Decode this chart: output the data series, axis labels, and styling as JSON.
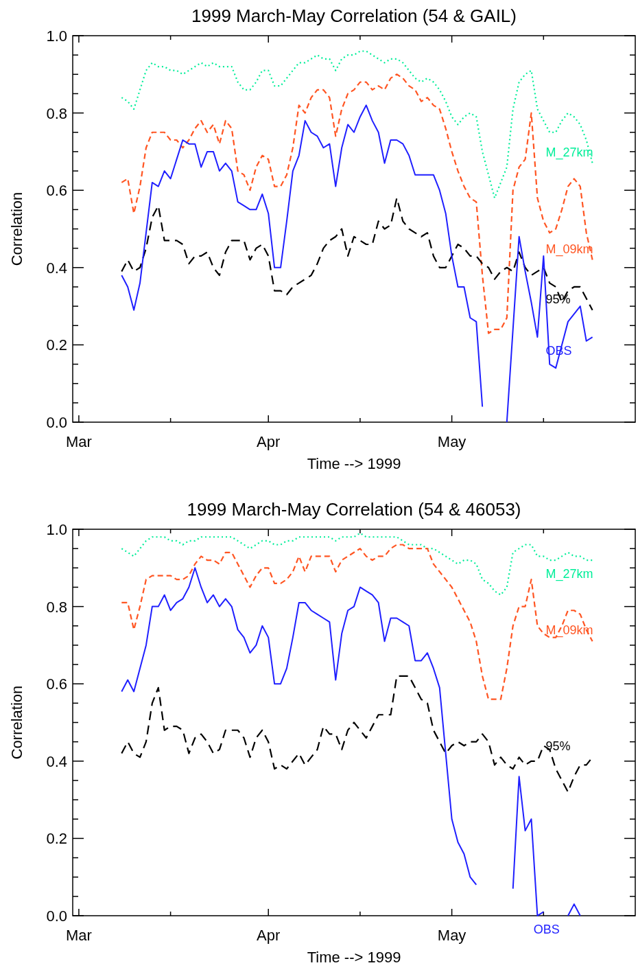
{
  "chart_data": [
    {
      "type": "line",
      "title": "1999 March-May Correlation (54 & GAIL)",
      "xlabel": "Time --> 1999",
      "ylabel": "Correlation",
      "x": [
        "1999-03-08",
        "1999-03-09",
        "1999-03-10",
        "1999-03-11",
        "1999-03-12",
        "1999-03-13",
        "1999-03-14",
        "1999-03-15",
        "1999-03-16",
        "1999-03-17",
        "1999-03-18",
        "1999-03-19",
        "1999-03-20",
        "1999-03-21",
        "1999-03-22",
        "1999-03-23",
        "1999-03-24",
        "1999-03-25",
        "1999-03-26",
        "1999-03-27",
        "1999-03-28",
        "1999-03-29",
        "1999-03-30",
        "1999-03-31",
        "1999-04-01",
        "1999-04-02",
        "1999-04-03",
        "1999-04-04",
        "1999-04-05",
        "1999-04-06",
        "1999-04-07",
        "1999-04-08",
        "1999-04-09",
        "1999-04-10",
        "1999-04-11",
        "1999-04-12",
        "1999-04-13",
        "1999-04-14",
        "1999-04-15",
        "1999-04-16",
        "1999-04-17",
        "1999-04-18",
        "1999-04-19",
        "1999-04-20",
        "1999-04-21",
        "1999-04-22",
        "1999-04-23",
        "1999-04-24",
        "1999-04-25",
        "1999-04-26",
        "1999-04-27",
        "1999-04-28",
        "1999-04-29",
        "1999-04-30",
        "1999-05-01",
        "1999-05-02",
        "1999-05-03",
        "1999-05-04",
        "1999-05-05",
        "1999-05-06",
        "1999-05-07",
        "1999-05-08",
        "1999-05-09",
        "1999-05-10",
        "1999-05-11",
        "1999-05-12",
        "1999-05-13",
        "1999-05-14",
        "1999-05-15",
        "1999-05-16",
        "1999-05-17",
        "1999-05-18",
        "1999-05-19",
        "1999-05-20",
        "1999-05-21",
        "1999-05-22",
        "1999-05-23",
        "1999-05-24"
      ],
      "series": [
        {
          "name": "M_27km",
          "color": "#00ee99",
          "line_style": "dotted",
          "values": [
            0.84,
            0.83,
            0.81,
            0.86,
            0.91,
            0.93,
            0.92,
            0.92,
            0.91,
            0.91,
            0.9,
            0.91,
            0.92,
            0.93,
            0.92,
            0.93,
            0.92,
            0.92,
            0.92,
            0.88,
            0.86,
            0.86,
            0.88,
            0.91,
            0.91,
            0.87,
            0.87,
            0.89,
            0.91,
            0.93,
            0.93,
            0.94,
            0.95,
            0.94,
            0.94,
            0.91,
            0.94,
            0.95,
            0.95,
            0.96,
            0.96,
            0.95,
            0.94,
            0.93,
            0.94,
            0.94,
            0.93,
            0.91,
            0.89,
            0.88,
            0.89,
            0.88,
            0.86,
            0.83,
            0.79,
            0.77,
            0.79,
            0.8,
            0.79,
            0.7,
            0.64,
            0.58,
            0.62,
            0.66,
            0.81,
            0.88,
            0.9,
            0.91,
            0.81,
            0.78,
            0.75,
            0.75,
            0.78,
            0.8,
            0.79,
            0.77,
            0.73,
            0.67
          ]
        },
        {
          "name": "M_09km",
          "color": "#ff5522",
          "line_style": "dashed",
          "values": [
            0.62,
            0.63,
            0.54,
            0.61,
            0.71,
            0.75,
            0.75,
            0.75,
            0.73,
            0.73,
            0.71,
            0.73,
            0.76,
            0.78,
            0.75,
            0.77,
            0.72,
            0.78,
            0.76,
            0.65,
            0.64,
            0.6,
            0.66,
            0.69,
            0.68,
            0.61,
            0.61,
            0.64,
            0.71,
            0.82,
            0.8,
            0.84,
            0.86,
            0.86,
            0.84,
            0.74,
            0.81,
            0.85,
            0.86,
            0.88,
            0.88,
            0.86,
            0.87,
            0.86,
            0.89,
            0.9,
            0.89,
            0.87,
            0.86,
            0.83,
            0.84,
            0.82,
            0.81,
            0.76,
            0.7,
            0.65,
            0.61,
            0.58,
            0.57,
            0.38,
            0.23,
            0.24,
            0.24,
            0.27,
            0.6,
            0.66,
            0.68,
            0.8,
            0.58,
            0.52,
            0.49,
            0.5,
            0.55,
            0.61,
            0.63,
            0.61,
            0.49,
            0.42
          ]
        },
        {
          "name": "95%",
          "color": "#000000",
          "line_style": "longdash",
          "values": [
            0.39,
            0.42,
            0.39,
            0.4,
            0.45,
            0.53,
            0.56,
            0.47,
            0.47,
            0.47,
            0.46,
            0.41,
            0.43,
            0.43,
            0.44,
            0.4,
            0.38,
            0.44,
            0.47,
            0.47,
            0.47,
            0.42,
            0.45,
            0.46,
            0.43,
            0.34,
            0.34,
            0.33,
            0.35,
            0.36,
            0.37,
            0.38,
            0.41,
            0.45,
            0.47,
            0.48,
            0.5,
            0.43,
            0.48,
            0.47,
            0.46,
            0.46,
            0.52,
            0.5,
            0.51,
            0.58,
            0.52,
            0.5,
            0.49,
            0.48,
            0.49,
            0.43,
            0.4,
            0.4,
            0.43,
            0.46,
            0.45,
            0.43,
            0.43,
            0.41,
            0.4,
            0.37,
            0.39,
            0.4,
            0.39,
            0.44,
            0.4,
            0.38,
            0.39,
            0.4,
            0.36,
            0.35,
            0.31,
            0.34,
            0.35,
            0.35,
            0.32,
            0.29
          ]
        },
        {
          "name": "OBS",
          "color": "#1f1fff",
          "line_style": "solid",
          "values": [
            0.38,
            0.35,
            0.29,
            0.36,
            0.49,
            0.62,
            0.61,
            0.65,
            0.63,
            0.68,
            0.73,
            0.72,
            0.72,
            0.66,
            0.7,
            0.7,
            0.65,
            0.67,
            0.65,
            0.57,
            0.56,
            0.55,
            0.55,
            0.59,
            0.54,
            0.4,
            0.4,
            0.52,
            0.65,
            0.69,
            0.78,
            0.75,
            0.74,
            0.71,
            0.72,
            0.61,
            0.71,
            0.77,
            0.75,
            0.79,
            0.82,
            0.78,
            0.75,
            0.67,
            0.73,
            0.73,
            0.72,
            0.69,
            0.64,
            0.64,
            0.64,
            0.64,
            0.6,
            0.54,
            0.43,
            0.35,
            0.35,
            0.27,
            0.26,
            0.04,
            null,
            null,
            null,
            0.0,
            0.24,
            0.48,
            0.39,
            0.31,
            0.22,
            0.43,
            0.15,
            0.14,
            0.2,
            0.26,
            0.28,
            0.3,
            0.21,
            0.22
          ]
        }
      ],
      "xlim": [
        "1999-02-28",
        "1999-05-31"
      ],
      "xticks": [
        {
          "value": "1999-03-01",
          "label": "Mar"
        },
        {
          "value": "1999-03-16",
          "label": null
        },
        {
          "value": "1999-04-01",
          "label": "Apr"
        },
        {
          "value": "1999-04-16",
          "label": null
        },
        {
          "value": "1999-05-01",
          "label": "May"
        },
        {
          "value": "1999-05-16",
          "label": null
        }
      ],
      "ylim": [
        0,
        1
      ],
      "yticks": [
        {
          "value": 0,
          "label": "0.0"
        },
        {
          "value": 0.05,
          "label": null
        },
        {
          "value": 0.1,
          "label": null
        },
        {
          "value": 0.15,
          "label": null
        },
        {
          "value": 0.2,
          "label": "0.2"
        },
        {
          "value": 0.25,
          "label": null
        },
        {
          "value": 0.3,
          "label": null
        },
        {
          "value": 0.35,
          "label": null
        },
        {
          "value": 0.4,
          "label": "0.4"
        },
        {
          "value": 0.45,
          "label": null
        },
        {
          "value": 0.5,
          "label": null
        },
        {
          "value": 0.55,
          "label": null
        },
        {
          "value": 0.6,
          "label": "0.6"
        },
        {
          "value": 0.65,
          "label": null
        },
        {
          "value": 0.7,
          "label": null
        },
        {
          "value": 0.75,
          "label": null
        },
        {
          "value": 0.8,
          "label": "0.8"
        },
        {
          "value": 0.85,
          "label": null
        },
        {
          "value": 0.9,
          "label": null
        },
        {
          "value": 0.95,
          "label": null
        },
        {
          "value": 1,
          "label": "1.0"
        }
      ]
    },
    {
      "type": "line",
      "title": "1999 March-May Correlation (54 & 46053)",
      "xlabel": "Time --> 1999",
      "ylabel": "Correlation",
      "x": [
        "1999-03-08",
        "1999-03-09",
        "1999-03-10",
        "1999-03-11",
        "1999-03-12",
        "1999-03-13",
        "1999-03-14",
        "1999-03-15",
        "1999-03-16",
        "1999-03-17",
        "1999-03-18",
        "1999-03-19",
        "1999-03-20",
        "1999-03-21",
        "1999-03-22",
        "1999-03-23",
        "1999-03-24",
        "1999-03-25",
        "1999-03-26",
        "1999-03-27",
        "1999-03-28",
        "1999-03-29",
        "1999-03-30",
        "1999-03-31",
        "1999-04-01",
        "1999-04-02",
        "1999-04-03",
        "1999-04-04",
        "1999-04-05",
        "1999-04-06",
        "1999-04-07",
        "1999-04-08",
        "1999-04-09",
        "1999-04-10",
        "1999-04-11",
        "1999-04-12",
        "1999-04-13",
        "1999-04-14",
        "1999-04-15",
        "1999-04-16",
        "1999-04-17",
        "1999-04-18",
        "1999-04-19",
        "1999-04-20",
        "1999-04-21",
        "1999-04-22",
        "1999-04-23",
        "1999-04-24",
        "1999-04-25",
        "1999-04-26",
        "1999-04-27",
        "1999-04-28",
        "1999-04-29",
        "1999-04-30",
        "1999-05-01",
        "1999-05-02",
        "1999-05-03",
        "1999-05-04",
        "1999-05-05",
        "1999-05-06",
        "1999-05-07",
        "1999-05-08",
        "1999-05-09",
        "1999-05-10",
        "1999-05-11",
        "1999-05-12",
        "1999-05-13",
        "1999-05-14",
        "1999-05-15",
        "1999-05-16",
        "1999-05-17",
        "1999-05-18",
        "1999-05-19",
        "1999-05-20",
        "1999-05-21",
        "1999-05-22",
        "1999-05-23",
        "1999-05-24"
      ],
      "series": [
        {
          "name": "M_27km",
          "color": "#00ee99",
          "line_style": "dotted",
          "values": [
            0.95,
            0.94,
            0.93,
            0.95,
            0.97,
            0.98,
            0.98,
            0.98,
            0.97,
            0.97,
            0.96,
            0.97,
            0.97,
            0.98,
            0.98,
            0.98,
            0.98,
            0.98,
            0.98,
            0.97,
            0.96,
            0.95,
            0.96,
            0.97,
            0.97,
            0.96,
            0.96,
            0.97,
            0.97,
            0.98,
            0.98,
            0.98,
            0.98,
            0.98,
            0.98,
            0.97,
            0.98,
            0.98,
            0.98,
            0.99,
            0.98,
            0.98,
            0.98,
            0.98,
            0.98,
            0.98,
            0.97,
            0.96,
            0.96,
            0.96,
            0.95,
            0.95,
            0.94,
            0.93,
            0.92,
            0.91,
            0.92,
            0.92,
            0.91,
            0.87,
            0.86,
            0.84,
            0.83,
            0.85,
            0.94,
            0.95,
            0.96,
            0.96,
            0.93,
            0.93,
            0.92,
            0.92,
            0.93,
            0.94,
            0.93,
            0.93,
            0.92,
            0.92
          ]
        },
        {
          "name": "M_09km",
          "color": "#ff5522",
          "line_style": "dashed",
          "values": [
            0.81,
            0.81,
            0.74,
            0.8,
            0.87,
            0.88,
            0.88,
            0.88,
            0.88,
            0.87,
            0.87,
            0.88,
            0.91,
            0.93,
            0.92,
            0.92,
            0.91,
            0.94,
            0.94,
            0.91,
            0.88,
            0.85,
            0.88,
            0.9,
            0.9,
            0.86,
            0.86,
            0.87,
            0.89,
            0.93,
            0.89,
            0.93,
            0.93,
            0.93,
            0.93,
            0.89,
            0.92,
            0.93,
            0.94,
            0.95,
            0.93,
            0.92,
            0.93,
            0.93,
            0.95,
            0.96,
            0.96,
            0.95,
            0.95,
            0.95,
            0.95,
            0.91,
            0.89,
            0.87,
            0.85,
            0.82,
            0.79,
            0.76,
            0.71,
            0.62,
            0.56,
            0.56,
            0.56,
            0.64,
            0.75,
            0.8,
            0.8,
            0.87,
            0.75,
            0.73,
            0.72,
            0.72,
            0.75,
            0.79,
            0.79,
            0.78,
            0.74,
            0.71
          ]
        },
        {
          "name": "95%",
          "color": "#000000",
          "line_style": "longdash",
          "values": [
            0.42,
            0.45,
            0.42,
            0.41,
            0.45,
            0.55,
            0.59,
            0.48,
            0.49,
            0.49,
            0.48,
            0.42,
            0.46,
            0.47,
            0.45,
            0.42,
            0.43,
            0.48,
            0.48,
            0.48,
            0.46,
            0.41,
            0.46,
            0.48,
            0.45,
            0.38,
            0.39,
            0.38,
            0.4,
            0.42,
            0.39,
            0.41,
            0.43,
            0.49,
            0.47,
            0.47,
            0.43,
            0.48,
            0.5,
            0.48,
            0.46,
            0.49,
            0.52,
            0.52,
            0.52,
            0.62,
            0.62,
            0.62,
            0.59,
            0.56,
            0.55,
            0.48,
            0.45,
            0.42,
            0.44,
            0.45,
            0.44,
            0.45,
            0.45,
            0.47,
            0.45,
            0.39,
            0.41,
            0.39,
            0.38,
            0.41,
            0.39,
            0.4,
            0.4,
            0.44,
            0.43,
            0.38,
            0.35,
            0.32,
            0.36,
            0.39,
            0.39,
            0.41
          ]
        },
        {
          "name": "OBS",
          "color": "#1f1fff",
          "line_style": "solid",
          "values": [
            0.58,
            0.61,
            0.58,
            0.64,
            0.7,
            0.8,
            0.8,
            0.83,
            0.79,
            0.81,
            0.82,
            0.85,
            0.9,
            0.85,
            0.81,
            0.83,
            0.8,
            0.82,
            0.8,
            0.74,
            0.72,
            0.68,
            0.7,
            0.75,
            0.72,
            0.6,
            0.6,
            0.64,
            0.72,
            0.81,
            0.81,
            0.79,
            0.78,
            0.77,
            0.76,
            0.61,
            0.73,
            0.79,
            0.8,
            0.85,
            0.84,
            0.83,
            0.81,
            0.71,
            0.77,
            0.77,
            0.76,
            0.75,
            0.66,
            0.66,
            0.68,
            0.64,
            0.59,
            0.42,
            0.25,
            0.19,
            0.16,
            0.1,
            0.08,
            null,
            null,
            null,
            null,
            null,
            0.07,
            0.36,
            0.22,
            0.25,
            0.0,
            0.01,
            null,
            null,
            null,
            0.0,
            0.03,
            0.0,
            null,
            null
          ]
        }
      ],
      "xlim": [
        "1999-02-28",
        "1999-05-31"
      ],
      "xticks": [
        {
          "value": "1999-03-01",
          "label": "Mar"
        },
        {
          "value": "1999-03-16",
          "label": null
        },
        {
          "value": "1999-04-01",
          "label": "Apr"
        },
        {
          "value": "1999-04-16",
          "label": null
        },
        {
          "value": "1999-05-01",
          "label": "May"
        },
        {
          "value": "1999-05-16",
          "label": null
        }
      ],
      "ylim": [
        0,
        1
      ],
      "yticks": [
        {
          "value": 0,
          "label": "0.0"
        },
        {
          "value": 0.05,
          "label": null
        },
        {
          "value": 0.1,
          "label": null
        },
        {
          "value": 0.15,
          "label": null
        },
        {
          "value": 0.2,
          "label": "0.2"
        },
        {
          "value": 0.25,
          "label": null
        },
        {
          "value": 0.3,
          "label": null
        },
        {
          "value": 0.35,
          "label": null
        },
        {
          "value": 0.4,
          "label": "0.4"
        },
        {
          "value": 0.45,
          "label": null
        },
        {
          "value": 0.5,
          "label": null
        },
        {
          "value": 0.55,
          "label": null
        },
        {
          "value": 0.6,
          "label": "0.6"
        },
        {
          "value": 0.65,
          "label": null
        },
        {
          "value": 0.7,
          "label": null
        },
        {
          "value": 0.75,
          "label": null
        },
        {
          "value": 0.8,
          "label": "0.8"
        },
        {
          "value": 0.85,
          "label": null
        },
        {
          "value": 0.9,
          "label": null
        },
        {
          "value": 0.95,
          "label": null
        },
        {
          "value": 1,
          "label": "1.0"
        }
      ]
    }
  ]
}
